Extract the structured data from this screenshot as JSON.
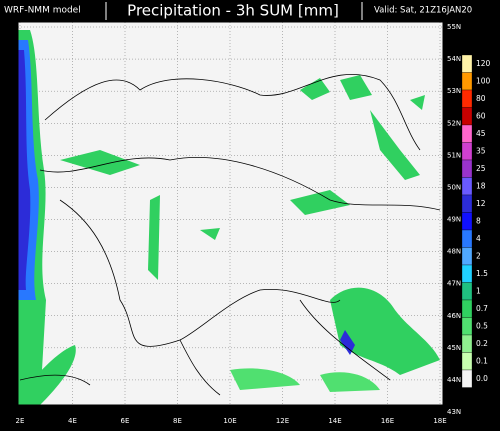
{
  "header": {
    "model": "WRF-NMM model",
    "title": "Precipitation - 3h SUM [mm]",
    "valid": "Valid: Sat, 21Z16JAN20"
  },
  "latitude_labels": [
    "55N",
    "54N",
    "53N",
    "52N",
    "51N",
    "50N",
    "49N",
    "48N",
    "47N",
    "46N",
    "45N",
    "44N",
    "43N"
  ],
  "longitude_labels": [
    "2E",
    "4E",
    "6E",
    "8E",
    "10E",
    "12E",
    "14E",
    "16E",
    "18E"
  ],
  "legend": [
    {
      "label": "120",
      "color": "#fff3a8"
    },
    {
      "label": "100",
      "color": "#ff9900"
    },
    {
      "label": "80",
      "color": "#ff2a00"
    },
    {
      "label": "60",
      "color": "#c80000"
    },
    {
      "label": "45",
      "color": "#ff66cc"
    },
    {
      "label": "35",
      "color": "#d040d0"
    },
    {
      "label": "25",
      "color": "#9933cc"
    },
    {
      "label": "18",
      "color": "#6a5aff"
    },
    {
      "label": "12",
      "color": "#2c2cd8"
    },
    {
      "label": "8",
      "color": "#1010ff"
    },
    {
      "label": "4",
      "color": "#2878ff"
    },
    {
      "label": "2",
      "color": "#50a8ff"
    },
    {
      "label": "1.5",
      "color": "#20d0ff"
    },
    {
      "label": "1",
      "color": "#20c080"
    },
    {
      "label": "0.7",
      "color": "#30d060"
    },
    {
      "label": "0.5",
      "color": "#50e070"
    },
    {
      "label": "0.2",
      "color": "#90f090"
    },
    {
      "label": "0.1",
      "color": "#c8ffb0"
    },
    {
      "label": "0.0",
      "color": "#f4f4f4"
    }
  ]
}
